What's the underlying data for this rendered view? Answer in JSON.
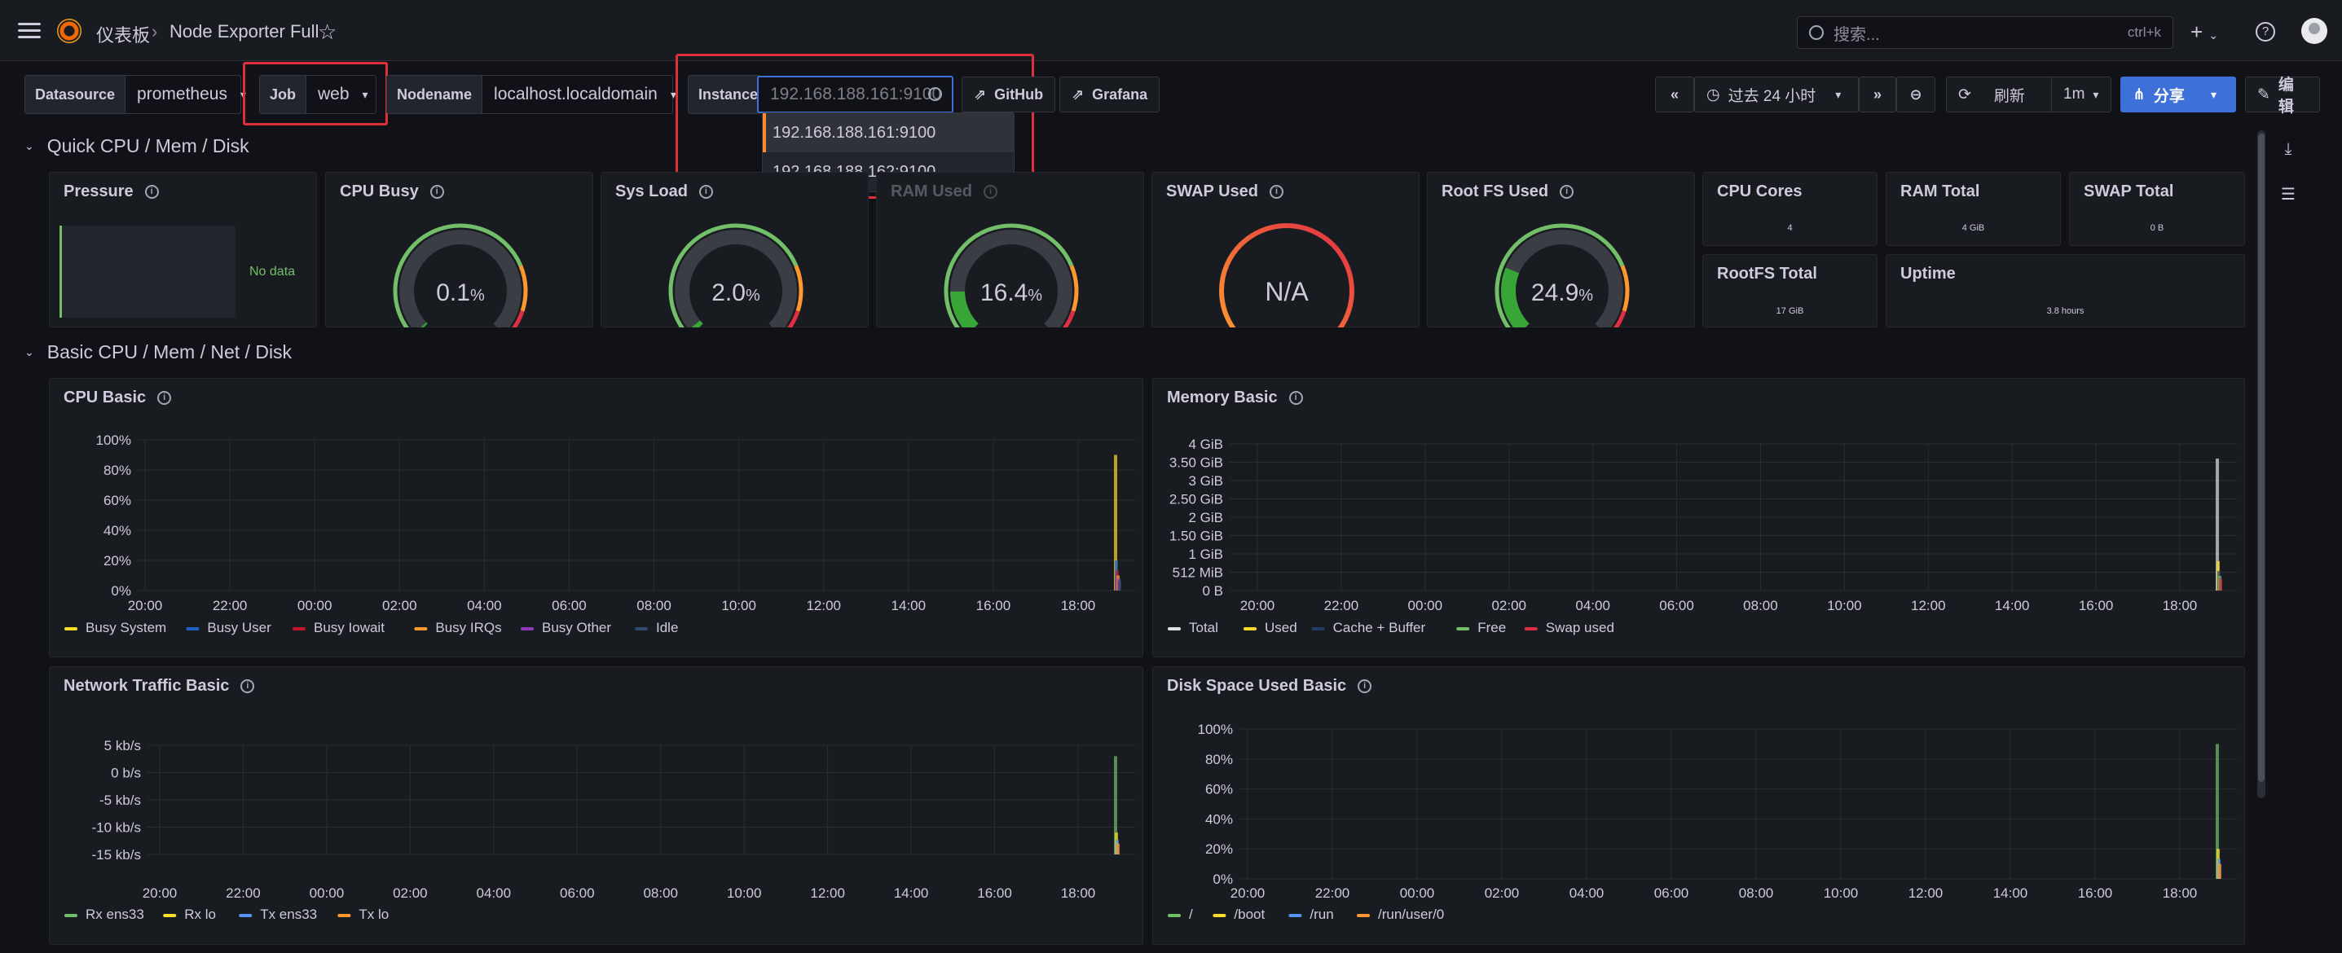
{
  "topbar": {
    "breadcrumb_home": "仪表板",
    "breadcrumb_sep": "›",
    "breadcrumb_current": "Node Exporter Full",
    "search_placeholder": "搜索...",
    "search_shortcut": "ctrl+k"
  },
  "variables": {
    "datasource": {
      "label": "Datasource",
      "value": "prometheus"
    },
    "job": {
      "label": "Job",
      "value": "web"
    },
    "nodename": {
      "label": "Nodename",
      "value": "localhost.localdomain"
    },
    "instance": {
      "label": "Instance",
      "value": "192.168.188.161:9100"
    }
  },
  "instance_dropdown": [
    "192.168.188.161:9100",
    "192.168.188.162:9100"
  ],
  "links": {
    "github": "GitHub",
    "grafana": "Grafana"
  },
  "toolbar": {
    "time_range": "过去 24 小时",
    "refresh": "刷新",
    "interval": "1m",
    "share": "分享",
    "edit": "编辑"
  },
  "rows": {
    "quick": "Quick CPU / Mem / Disk",
    "basic": "Basic CPU / Mem / Net / Disk"
  },
  "quick_panels": {
    "pressure": {
      "title": "Pressure",
      "nodata": "No data"
    },
    "cpu_busy": {
      "title": "CPU Busy",
      "value": "0.1",
      "unit": "%",
      "fraction": 0.001
    },
    "sys_load": {
      "title": "Sys Load",
      "value": "2.0",
      "unit": "%",
      "fraction": 0.02
    },
    "ram_used": {
      "title": "RAM Used",
      "value": "16.4",
      "unit": "%",
      "fraction": 0.164
    },
    "swap_used": {
      "title": "SWAP Used",
      "value": "N/A"
    },
    "root_fs_used": {
      "title": "Root FS Used",
      "value": "24.9",
      "unit": "%",
      "fraction": 0.249
    },
    "cpu_cores": {
      "title": "CPU Cores",
      "value": "4"
    },
    "ram_total": {
      "title": "RAM Total",
      "value": "4 GiB"
    },
    "swap_total": {
      "title": "SWAP Total",
      "value": "0 B"
    },
    "rootfs_total": {
      "title": "RootFS Total",
      "value": "17 GiB"
    },
    "uptime": {
      "title": "Uptime",
      "value": "3.8 hours"
    }
  },
  "chart_data": [
    {
      "type": "line",
      "title": "CPU Basic",
      "yticks": [
        "100%",
        "80%",
        "60%",
        "40%",
        "20%",
        "0%"
      ],
      "xticks": [
        "20:00",
        "22:00",
        "00:00",
        "02:00",
        "04:00",
        "06:00",
        "08:00",
        "10:00",
        "12:00",
        "14:00",
        "16:00",
        "18:00"
      ],
      "series": [
        {
          "name": "Busy System",
          "color": "#fade2a"
        },
        {
          "name": "Busy User",
          "color": "#1f60c4"
        },
        {
          "name": "Busy Iowait",
          "color": "#c4162a"
        },
        {
          "name": "Busy IRQs",
          "color": "#ff9830"
        },
        {
          "name": "Busy Other",
          "color": "#8f3bb8"
        },
        {
          "name": "Idle",
          "color": "#2f4a6b"
        }
      ]
    },
    {
      "type": "line",
      "title": "Memory Basic",
      "yticks": [
        "4 GiB",
        "3.50 GiB",
        "3 GiB",
        "2.50 GiB",
        "2 GiB",
        "1.50 GiB",
        "1 GiB",
        "512 MiB",
        "0 B"
      ],
      "xticks": [
        "20:00",
        "22:00",
        "00:00",
        "02:00",
        "04:00",
        "06:00",
        "08:00",
        "10:00",
        "12:00",
        "14:00",
        "16:00",
        "18:00"
      ],
      "series": [
        {
          "name": "Total",
          "color": "#e0e0e0"
        },
        {
          "name": "Used",
          "color": "#fade2a"
        },
        {
          "name": "Cache + Buffer",
          "color": "#1f3d66"
        },
        {
          "name": "Free",
          "color": "#73bf69"
        },
        {
          "name": "Swap used",
          "color": "#e02f44"
        }
      ]
    },
    {
      "type": "line",
      "title": "Network Traffic Basic",
      "yticks": [
        "5 kb/s",
        "0 b/s",
        "-5 kb/s",
        "-10 kb/s",
        "-15 kb/s"
      ],
      "xticks": [
        "20:00",
        "22:00",
        "00:00",
        "02:00",
        "04:00",
        "06:00",
        "08:00",
        "10:00",
        "12:00",
        "14:00",
        "16:00",
        "18:00"
      ],
      "series": [
        {
          "name": "Rx ens33",
          "color": "#73bf69"
        },
        {
          "name": "Rx lo",
          "color": "#fade2a"
        },
        {
          "name": "Tx ens33",
          "color": "#5794f2"
        },
        {
          "name": "Tx lo",
          "color": "#ff9830"
        }
      ]
    },
    {
      "type": "line",
      "title": "Disk Space Used Basic",
      "yticks": [
        "100%",
        "80%",
        "60%",
        "40%",
        "20%",
        "0%"
      ],
      "xticks": [
        "20:00",
        "22:00",
        "00:00",
        "02:00",
        "04:00",
        "06:00",
        "08:00",
        "10:00",
        "12:00",
        "14:00",
        "16:00",
        "18:00"
      ],
      "series": [
        {
          "name": "/",
          "color": "#73bf69"
        },
        {
          "name": "/boot",
          "color": "#fade2a"
        },
        {
          "name": "/run",
          "color": "#5794f2"
        },
        {
          "name": "/run/user/0",
          "color": "#ff9830"
        }
      ]
    }
  ]
}
